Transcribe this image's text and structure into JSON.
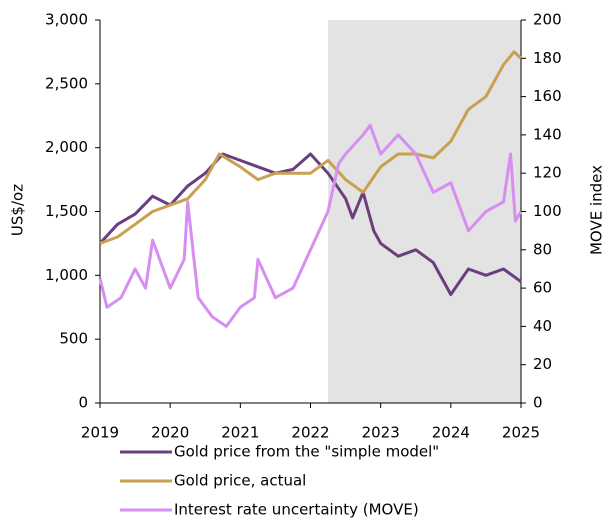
{
  "chart_data": {
    "type": "line",
    "ylabel": "US$/oz",
    "y2label": "MOVE index",
    "xlim": [
      2019,
      2025
    ],
    "xticks": [
      2019,
      2020,
      2021,
      2022,
      2023,
      2024,
      2025
    ],
    "ylim": [
      0,
      3000
    ],
    "yticks": [
      0,
      {
        "value": 500,
        "label": "500"
      },
      {
        "value": 1000,
        "label": "1,000"
      },
      {
        "value": 1500,
        "label": "1,500"
      },
      {
        "value": 2000,
        "label": "2,000"
      },
      {
        "value": 2500,
        "label": "2,500"
      },
      {
        "value": 3000,
        "label": "3,000"
      }
    ],
    "y2lim": [
      0,
      200
    ],
    "y2ticks": [
      0,
      20,
      40,
      60,
      80,
      100,
      120,
      140,
      160,
      180,
      200
    ],
    "shaded": {
      "from": 2022.25,
      "to": 2025,
      "color": "#e3e3e3"
    },
    "series": [
      {
        "name": "Gold price from the \"simple model\"",
        "color": "#6a3f80",
        "x": [
          2019,
          2019.25,
          2019.5,
          2019.75,
          2020,
          2020.25,
          2020.5,
          2020.75,
          2021,
          2021.25,
          2021.5,
          2021.75,
          2022,
          2022.25,
          2022.5,
          2022.6,
          2022.75,
          2022.9,
          2023,
          2023.25,
          2023.5,
          2023.75,
          2024,
          2024.25,
          2024.5,
          2024.75,
          2025
        ],
        "values": [
          1250,
          1400,
          1480,
          1620,
          1550,
          1700,
          1800,
          1950,
          1900,
          1850,
          1800,
          1830,
          1950,
          1800,
          1600,
          1450,
          1650,
          1350,
          1250,
          1150,
          1200,
          1100,
          850,
          1050,
          1000,
          1050,
          950
        ]
      },
      {
        "name": "Gold price, actual",
        "color": "#c9a050",
        "x": [
          2019,
          2019.25,
          2019.5,
          2019.75,
          2020,
          2020.25,
          2020.5,
          2020.7,
          2021,
          2021.25,
          2021.5,
          2021.75,
          2022,
          2022.25,
          2022.5,
          2022.75,
          2023,
          2023.25,
          2023.5,
          2023.75,
          2024,
          2024.25,
          2024.5,
          2024.75,
          2024.9,
          2025
        ],
        "values": [
          1250,
          1300,
          1400,
          1500,
          1550,
          1600,
          1750,
          1950,
          1850,
          1750,
          1800,
          1800,
          1800,
          1900,
          1750,
          1650,
          1850,
          1950,
          1950,
          1920,
          2050,
          2300,
          2400,
          2650,
          2750,
          2700
        ]
      },
      {
        "name": "Interest rate uncertainty (MOVE)",
        "color": "#d68ff0",
        "axis": "y2",
        "x": [
          2019,
          2019.1,
          2019.3,
          2019.5,
          2019.65,
          2019.75,
          2020,
          2020.2,
          2020.25,
          2020.4,
          2020.6,
          2020.8,
          2021,
          2021.2,
          2021.25,
          2021.5,
          2021.75,
          2022,
          2022.25,
          2022.4,
          2022.5,
          2022.75,
          2022.85,
          2023,
          2023.25,
          2023.5,
          2023.75,
          2024,
          2024.25,
          2024.5,
          2024.75,
          2024.85,
          2024.92,
          2025
        ],
        "values": [
          65,
          50,
          55,
          70,
          60,
          85,
          60,
          75,
          105,
          55,
          45,
          40,
          50,
          55,
          75,
          55,
          60,
          80,
          100,
          125,
          130,
          140,
          145,
          130,
          140,
          130,
          110,
          115,
          90,
          100,
          105,
          130,
          95,
          100
        ]
      }
    ]
  }
}
